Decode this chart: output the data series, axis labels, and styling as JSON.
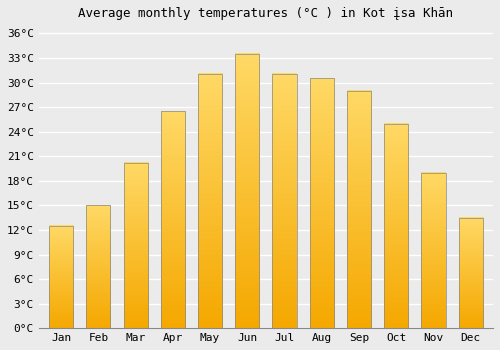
{
  "months": [
    "Jan",
    "Feb",
    "Mar",
    "Apr",
    "May",
    "Jun",
    "Jul",
    "Aug",
    "Sep",
    "Oct",
    "Nov",
    "Dec"
  ],
  "temperatures": [
    12.5,
    15.0,
    20.2,
    26.5,
    31.1,
    33.5,
    31.1,
    30.5,
    29.0,
    25.0,
    19.0,
    13.5
  ],
  "bar_color_bottom": "#F5A800",
  "bar_color_top": "#FFD966",
  "bar_edge_color": "#888888",
  "title": "Average monthly temperatures (°C ) in Kot įsa Khān",
  "ylim": [
    0,
    37
  ],
  "yticks": [
    0,
    3,
    6,
    9,
    12,
    15,
    18,
    21,
    24,
    27,
    30,
    33,
    36
  ],
  "background_color": "#ebebeb",
  "grid_color": "#ffffff",
  "title_fontsize": 9,
  "tick_fontsize": 8
}
